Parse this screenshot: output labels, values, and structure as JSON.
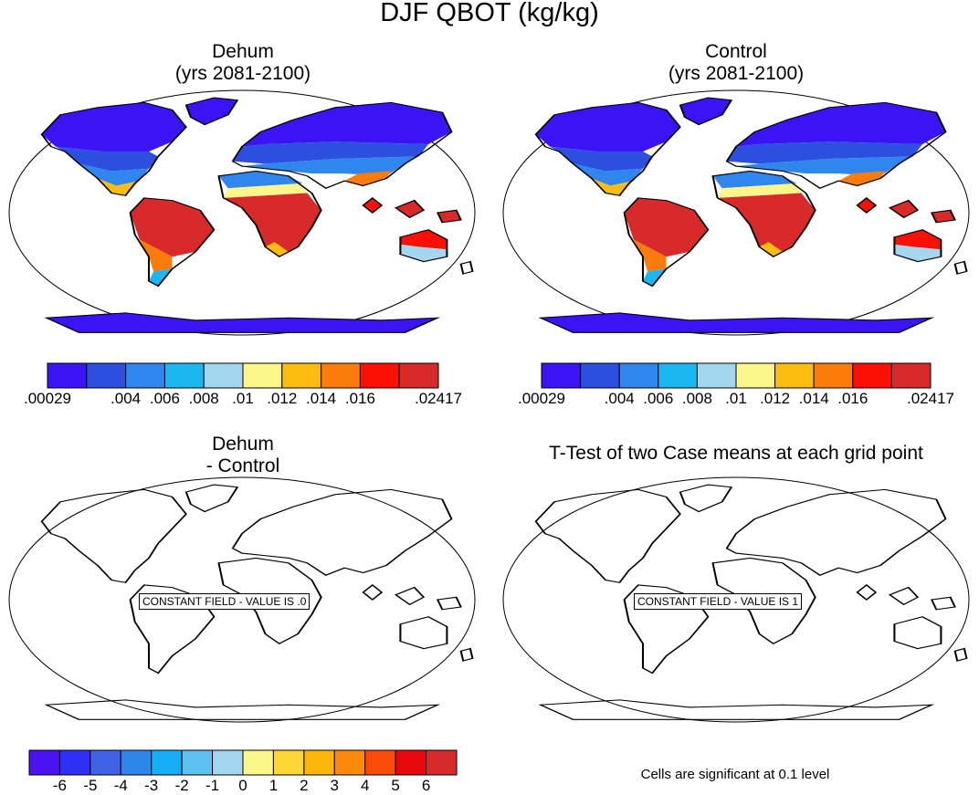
{
  "title": "DJF QBOT (kg/kg)",
  "panels": [
    {
      "id": "dehum",
      "title_line1": "Dehum",
      "title_line2": "(yrs 2081-2100)",
      "field": "filled"
    },
    {
      "id": "control",
      "title_line1": "Control",
      "title_line2": "(yrs 2081-2100)",
      "field": "filled"
    },
    {
      "id": "diff",
      "title_line1": "Dehum",
      "title_line2": "- Control",
      "field": "constant",
      "constant_text": "CONSTANT FIELD - VALUE IS .0"
    },
    {
      "id": "ttest",
      "title_line1": "T-Test of two Case means at each grid point",
      "title_line2": "",
      "field": "constant",
      "constant_text": "CONSTANT FIELD - VALUE IS 1"
    }
  ],
  "colorbar_field": {
    "colors": [
      "#3a14f5",
      "#2c4fe0",
      "#2f86ec",
      "#1ab7f2",
      "#a5d6ef",
      "#fdf68a",
      "#fdbd10",
      "#fc7c0b",
      "#fa1005",
      "#d82a2a"
    ],
    "labels": [
      {
        "text": ".00029",
        "boundary": 0
      },
      {
        "text": ".004",
        "boundary": 2
      },
      {
        "text": ".006",
        "boundary": 3
      },
      {
        "text": ".008",
        "boundary": 4
      },
      {
        "text": ".01",
        "boundary": 5
      },
      {
        "text": ".012",
        "boundary": 6
      },
      {
        "text": ".014",
        "boundary": 7
      },
      {
        "text": ".016",
        "boundary": 8
      },
      {
        "text": ".02417",
        "boundary": 10
      }
    ]
  },
  "colorbar_diff": {
    "colors": [
      "#4b12f2",
      "#2f2ef4",
      "#3f63e4",
      "#2e86ea",
      "#16aff6",
      "#5fc1ef",
      "#a5d6ef",
      "#fdf68a",
      "#fed635",
      "#fdb508",
      "#fc8a0a",
      "#fb4c07",
      "#e8080c",
      "#d72b2b"
    ],
    "labels": [
      "-6",
      "-5",
      "-4",
      "-3",
      "-2",
      "-1",
      "0",
      "1",
      "2",
      "3",
      "4",
      "5",
      "6"
    ]
  },
  "significance_note": "Cells are significant at 0.1 level"
}
